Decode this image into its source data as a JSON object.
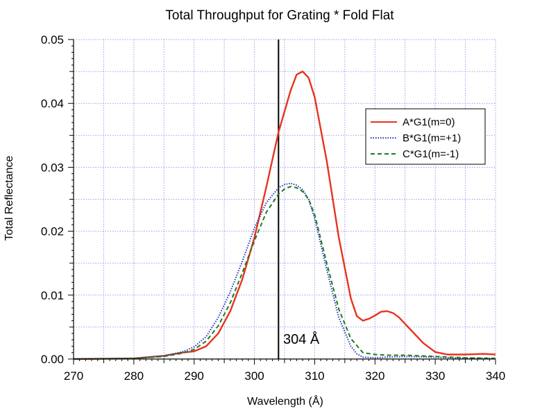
{
  "chart_data": {
    "type": "line",
    "title": "Total Throughput for Grating * Fold Flat",
    "xlabel": "Wavelength (Å)",
    "ylabel": "Total Reflectance",
    "xlim": [
      270,
      340
    ],
    "ylim": [
      0,
      0.05
    ],
    "x_ticks": [
      270,
      280,
      290,
      300,
      310,
      320,
      330,
      340
    ],
    "x_tick_labels": [
      "270",
      "280",
      "290",
      "300",
      "310",
      "320",
      "330",
      "340"
    ],
    "y_ticks": [
      0,
      0.01,
      0.02,
      0.03,
      0.04,
      0.05
    ],
    "y_tick_labels": [
      "0.00",
      "0.01",
      "0.02",
      "0.03",
      "0.04",
      "0.05"
    ],
    "grid": true,
    "legend_position": "upper-right",
    "reference_line": {
      "x": 304,
      "label": "304 Å",
      "color": "#000000"
    },
    "series": [
      {
        "name": "A*G1(m=0)",
        "color": "#e8321e",
        "style": "solid",
        "x": [
          270,
          280,
          285,
          288,
          290,
          292,
          294,
          296,
          298,
          300,
          302,
          304,
          306,
          307,
          308,
          309,
          310,
          312,
          314,
          316,
          317,
          318,
          319,
          320,
          321,
          322,
          323,
          324,
          326,
          328,
          330,
          332,
          335,
          338,
          340
        ],
        "y": [
          0.0,
          0.0001,
          0.0005,
          0.001,
          0.0012,
          0.002,
          0.004,
          0.0075,
          0.0125,
          0.019,
          0.027,
          0.0355,
          0.042,
          0.0445,
          0.045,
          0.044,
          0.041,
          0.031,
          0.019,
          0.0095,
          0.0067,
          0.006,
          0.0063,
          0.0068,
          0.0074,
          0.0075,
          0.0072,
          0.0065,
          0.0045,
          0.0025,
          0.0011,
          0.0007,
          0.0007,
          0.0008,
          0.0007
        ]
      },
      {
        "name": "B*G1(m=+1)",
        "color": "#1a33b8",
        "style": "dotted",
        "x": [
          270,
          280,
          285,
          288,
          290,
          292,
          294,
          296,
          298,
          300,
          302,
          304,
          305,
          306,
          307,
          308,
          309,
          310,
          312,
          314,
          316,
          317,
          318,
          320,
          322,
          325,
          330,
          335,
          340
        ],
        "y": [
          0.0,
          0.0001,
          0.0005,
          0.0011,
          0.0019,
          0.0035,
          0.0065,
          0.0105,
          0.0153,
          0.0205,
          0.0245,
          0.0268,
          0.0273,
          0.0275,
          0.0272,
          0.0265,
          0.025,
          0.022,
          0.014,
          0.0065,
          0.002,
          0.0008,
          0.0003,
          0.0002,
          0.0003,
          0.0004,
          0.0003,
          0.0001,
          0.0001
        ]
      },
      {
        "name": "C*G1(m=-1)",
        "color": "#1e7a1e",
        "style": "dashed",
        "x": [
          270,
          280,
          285,
          288,
          290,
          292,
          294,
          296,
          298,
          300,
          302,
          304,
          305,
          306,
          307,
          308,
          309,
          310,
          312,
          314,
          316,
          318,
          320,
          322,
          325,
          330,
          335,
          340
        ],
        "y": [
          0.0,
          0.0001,
          0.0004,
          0.0009,
          0.0015,
          0.0028,
          0.0052,
          0.0088,
          0.0135,
          0.0185,
          0.023,
          0.0258,
          0.0266,
          0.027,
          0.0268,
          0.0262,
          0.025,
          0.0226,
          0.015,
          0.0078,
          0.0032,
          0.001,
          0.0007,
          0.0006,
          0.0006,
          0.0004,
          0.0002,
          0.0001
        ]
      }
    ]
  }
}
